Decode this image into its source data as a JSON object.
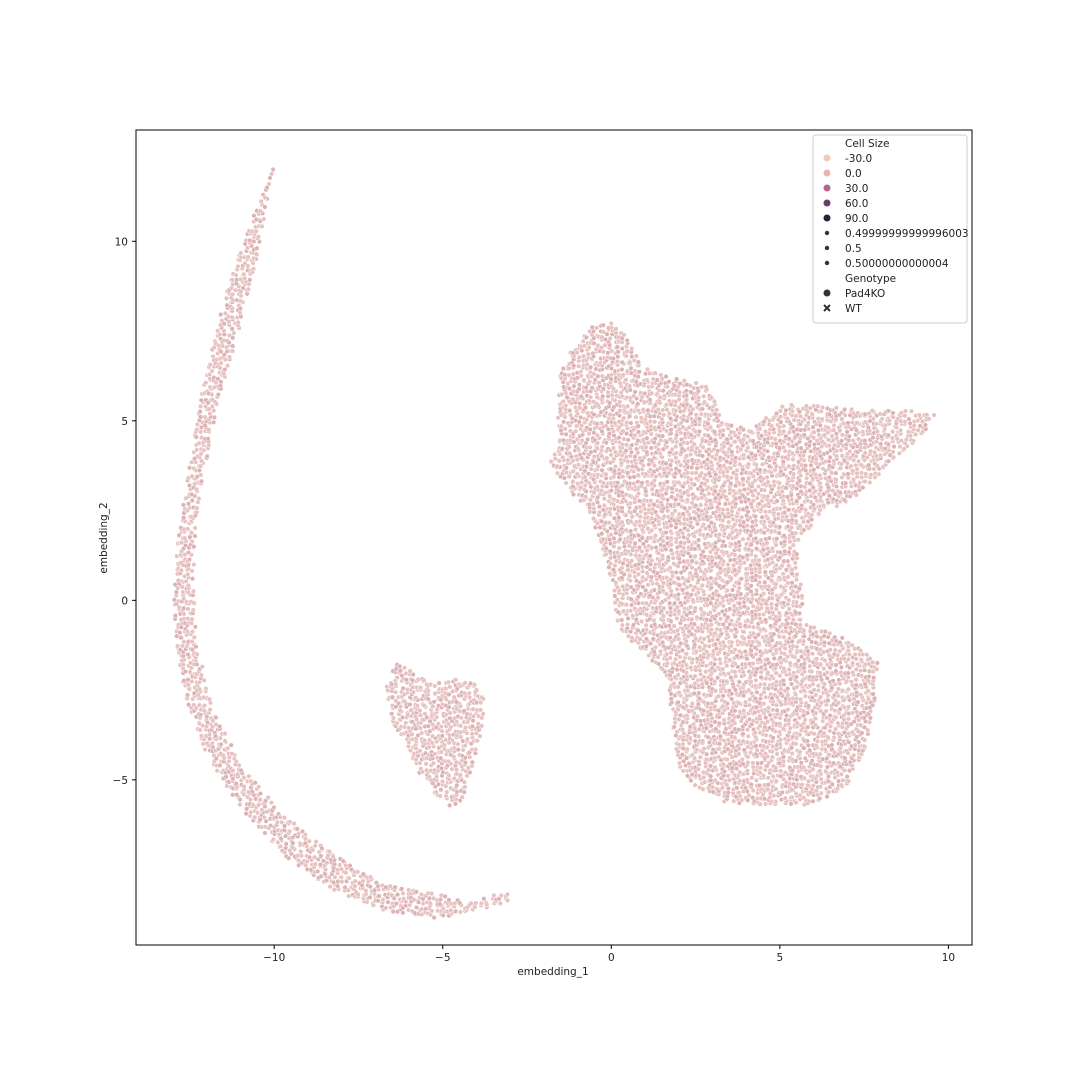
{
  "chart_data": {
    "type": "scatter",
    "xlabel": "embedding_1",
    "ylabel": "embedding_2",
    "xlim": [
      -14.1,
      10.7
    ],
    "ylim": [
      -9.6,
      13.1
    ],
    "xticks": [
      -10,
      -5,
      0,
      5,
      10
    ],
    "xtick_labels": [
      "−10",
      "−5",
      "0",
      "5",
      "10"
    ],
    "yticks": [
      10,
      5,
      0,
      -5
    ],
    "ytick_labels": [
      "10",
      "5",
      "0",
      "−5"
    ],
    "grid": false,
    "legend_position": "top-right",
    "point_color": "#e7c3c0",
    "point_edge_color": "#ffffff",
    "legend": {
      "hue_title": "Cell Size",
      "hue_entries": [
        {
          "label": "-30.0",
          "color": "#f2cbb7"
        },
        {
          "label": "0.0",
          "color": "#e8b5ad"
        },
        {
          "label": "30.0",
          "color": "#b4678e"
        },
        {
          "label": "60.0",
          "color": "#6a3a6c"
        },
        {
          "label": "90.0",
          "color": "#2d1e3e"
        }
      ],
      "size_entries": [
        {
          "label": "0.49999999999996003"
        },
        {
          "label": "0.5"
        },
        {
          "label": "0.50000000000004"
        }
      ],
      "style_title": "Genotype",
      "style_entries": [
        {
          "label": "Pad4KO",
          "marker": "circle"
        },
        {
          "label": "WT",
          "marker": "x"
        }
      ]
    },
    "series": [
      {
        "region": "outer-arc",
        "outline": [
          [
            -10.0,
            12.1
          ],
          [
            -10.8,
            10.3
          ],
          [
            -11.5,
            8.3
          ],
          [
            -12.1,
            6.0
          ],
          [
            -12.5,
            3.8
          ],
          [
            -12.9,
            1.5
          ],
          [
            -13.0,
            -0.5
          ],
          [
            -12.7,
            -2.5
          ],
          [
            -12.0,
            -4.3
          ],
          [
            -11.0,
            -5.8
          ],
          [
            -9.6,
            -7.2
          ],
          [
            -8.0,
            -8.2
          ],
          [
            -6.5,
            -8.7
          ],
          [
            -5.0,
            -8.9
          ],
          [
            -3.8,
            -8.6
          ],
          [
            -2.8,
            -8.3
          ],
          [
            -3.0,
            -8.1
          ],
          [
            -4.3,
            -8.4
          ],
          [
            -5.5,
            -8.1
          ],
          [
            -6.8,
            -7.9
          ],
          [
            -8.2,
            -7.1
          ],
          [
            -9.7,
            -6.0
          ],
          [
            -10.9,
            -4.7
          ],
          [
            -11.8,
            -3.1
          ],
          [
            -12.3,
            -1.2
          ],
          [
            -12.4,
            0.8
          ],
          [
            -12.2,
            3.0
          ],
          [
            -11.7,
            5.3
          ],
          [
            -11.0,
            7.7
          ],
          [
            -10.5,
            9.6
          ],
          [
            -10.0,
            12.1
          ]
        ]
      },
      {
        "region": "middle-island",
        "outline": [
          [
            -6.5,
            -2.0
          ],
          [
            -6.3,
            -1.7
          ],
          [
            -5.9,
            -2.0
          ],
          [
            -5.3,
            -2.3
          ],
          [
            -4.6,
            -2.2
          ],
          [
            -4.1,
            -2.3
          ],
          [
            -3.8,
            -2.6
          ],
          [
            -3.8,
            -3.5
          ],
          [
            -4.1,
            -4.5
          ],
          [
            -4.4,
            -5.5
          ],
          [
            -4.7,
            -5.9
          ],
          [
            -5.0,
            -5.6
          ],
          [
            -5.6,
            -5.0
          ],
          [
            -6.1,
            -4.0
          ],
          [
            -6.6,
            -3.2
          ],
          [
            -6.7,
            -2.5
          ],
          [
            -6.5,
            -2.0
          ]
        ]
      },
      {
        "region": "main-cluster",
        "outline": [
          [
            -1.5,
            6.3
          ],
          [
            -1.2,
            7.0
          ],
          [
            -0.6,
            7.6
          ],
          [
            0.0,
            7.8
          ],
          [
            0.5,
            7.3
          ],
          [
            0.9,
            6.5
          ],
          [
            1.8,
            6.2
          ],
          [
            2.8,
            6.0
          ],
          [
            3.1,
            5.6
          ],
          [
            3.3,
            5.0
          ],
          [
            3.6,
            4.9
          ],
          [
            4.1,
            4.8
          ],
          [
            4.8,
            5.2
          ],
          [
            5.2,
            5.5
          ],
          [
            6.3,
            5.4
          ],
          [
            7.5,
            5.3
          ],
          [
            8.6,
            5.3
          ],
          [
            9.6,
            5.2
          ],
          [
            9.3,
            4.7
          ],
          [
            8.5,
            4.0
          ],
          [
            7.7,
            3.3
          ],
          [
            7.0,
            2.7
          ],
          [
            6.3,
            2.5
          ],
          [
            5.9,
            2.0
          ],
          [
            5.5,
            1.6
          ],
          [
            5.6,
            0.6
          ],
          [
            5.7,
            0.0
          ],
          [
            5.6,
            -0.6
          ],
          [
            6.2,
            -0.8
          ],
          [
            7.0,
            -1.1
          ],
          [
            7.9,
            -1.7
          ],
          [
            7.8,
            -2.9
          ],
          [
            7.5,
            -4.3
          ],
          [
            6.9,
            -5.3
          ],
          [
            5.8,
            -5.7
          ],
          [
            4.3,
            -5.7
          ],
          [
            3.3,
            -5.6
          ],
          [
            2.4,
            -5.1
          ],
          [
            2.0,
            -4.6
          ],
          [
            1.9,
            -4.0
          ],
          [
            1.8,
            -3.2
          ],
          [
            1.7,
            -2.6
          ],
          [
            1.6,
            -2.0
          ],
          [
            1.1,
            -1.6
          ],
          [
            0.7,
            -1.2
          ],
          [
            0.3,
            -0.9
          ],
          [
            0.1,
            -0.3
          ],
          [
            0.1,
            0.2
          ],
          [
            0.0,
            0.6
          ],
          [
            -0.3,
            1.5
          ],
          [
            -0.7,
            2.6
          ],
          [
            -1.2,
            3.0
          ],
          [
            -1.8,
            3.8
          ],
          [
            -1.6,
            4.6
          ],
          [
            -1.6,
            5.4
          ],
          [
            -1.5,
            6.3
          ]
        ]
      }
    ]
  }
}
